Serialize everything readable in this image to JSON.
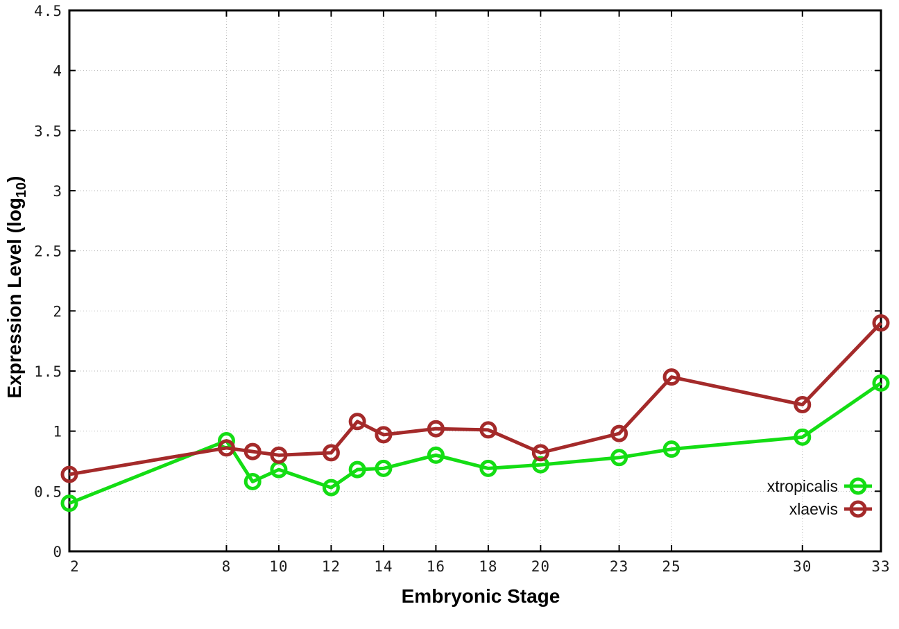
{
  "chart_data": {
    "type": "line",
    "title": "",
    "xlabel": "Embryonic Stage",
    "ylabel_parts": {
      "main": "Expression Level (log",
      "sub": "10",
      "tail": ")"
    },
    "x": [
      2,
      8,
      9,
      10,
      12,
      13,
      14,
      16,
      18,
      20,
      23,
      25,
      30,
      33
    ],
    "xlim": [
      2,
      33
    ],
    "ylim": [
      0,
      4.5
    ],
    "xticks": [
      2,
      8,
      10,
      12,
      14,
      16,
      18,
      20,
      23,
      25,
      30,
      33
    ],
    "xtick_labels": [
      "2",
      "8",
      "10",
      "12",
      "14",
      "16",
      "18",
      "20",
      "23",
      "25",
      "30",
      "33"
    ],
    "yticks": [
      0,
      0.5,
      1,
      1.5,
      2,
      2.5,
      3,
      3.5,
      4,
      4.5
    ],
    "ytick_labels": [
      "0",
      "0.5",
      "1",
      "1.5",
      "2",
      "2.5",
      "3",
      "3.5",
      "4",
      "4.5"
    ],
    "grid": true,
    "grid_color": "#b5b5b5",
    "border_color": "#000000",
    "legend_position": "inside-bottom-right",
    "series": [
      {
        "name": "xtropicalis",
        "color": "#14dd14",
        "values": [
          0.4,
          0.92,
          0.58,
          0.68,
          0.53,
          0.68,
          0.69,
          0.8,
          0.69,
          0.72,
          0.78,
          0.85,
          0.95,
          1.4
        ]
      },
      {
        "name": "xlaevis",
        "color": "#a42a2a",
        "values": [
          0.64,
          0.86,
          0.83,
          0.8,
          0.82,
          1.08,
          0.97,
          1.02,
          1.01,
          0.82,
          0.98,
          1.45,
          1.22,
          1.9
        ]
      }
    ]
  }
}
